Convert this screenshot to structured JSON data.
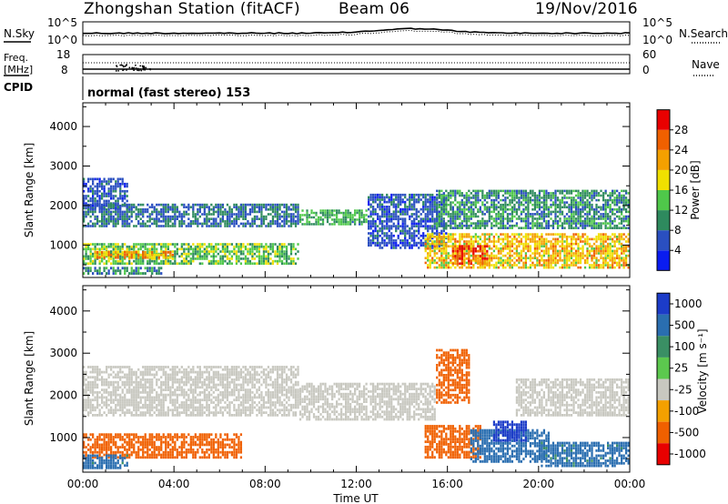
{
  "header": {
    "title": "Zhongshan Station (fitACF)",
    "beam": "Beam 06",
    "date": "19/Nov/2016"
  },
  "panels": {
    "nsky_label": "N.Sky",
    "nsearch_label": "N.Search",
    "sky_tick_top": "10^5",
    "sky_tick_bottom": "10^0",
    "freq_label_line1": "Freq.",
    "freq_label_line2": "[MHz]",
    "freq_tick_top": "18",
    "freq_tick_bottom": "8",
    "nave_tick_top": "60",
    "nave_tick_bottom": "0",
    "nave_label": "Nave",
    "cpid_label": "CPID",
    "cpid_text": "normal (fast stereo) 153"
  },
  "chart_data": [
    {
      "type": "heatmap",
      "variable": "power",
      "ylabel": "Slant Range [km]",
      "xlabel": "Time UT",
      "x_ticks": [
        "00:00",
        "04:00",
        "08:00",
        "12:00",
        "16:00",
        "20:00",
        "00:00"
      ],
      "y_ticks": [
        1000,
        2000,
        3000,
        4000
      ],
      "ylim": [
        180,
        4600
      ],
      "xlim_hours": [
        0,
        24
      ],
      "colorbar": {
        "label": "Power [dB]",
        "ticks": [
          4,
          8,
          12,
          16,
          20,
          24,
          28
        ],
        "range": [
          0,
          32
        ],
        "colors": [
          "#0a1cf0",
          "#2a4fc0",
          "#2e8a5e",
          "#4fc84a",
          "#f0e000",
          "#f4a000",
          "#f06000",
          "#e80000"
        ]
      },
      "echo_regions": [
        {
          "t0": 0.0,
          "t1": 2.0,
          "r0": 1900,
          "r1": 2700,
          "level": 6
        },
        {
          "t0": 0.0,
          "t1": 9.5,
          "r0": 1450,
          "r1": 2050,
          "level": 8
        },
        {
          "t0": 0.0,
          "t1": 9.5,
          "r0": 500,
          "r1": 1050,
          "level": 14
        },
        {
          "t0": 0.5,
          "t1": 4.0,
          "r0": 650,
          "r1": 850,
          "level": 22
        },
        {
          "t0": 0.0,
          "t1": 3.5,
          "r0": 250,
          "r1": 450,
          "level": 10
        },
        {
          "t0": 9.5,
          "t1": 12.5,
          "r0": 1500,
          "r1": 1900,
          "level": 12
        },
        {
          "t0": 12.5,
          "t1": 16.0,
          "r0": 900,
          "r1": 2300,
          "level": 6
        },
        {
          "t0": 15.0,
          "t1": 24.0,
          "r0": 400,
          "r1": 1300,
          "level": 20
        },
        {
          "t0": 16.2,
          "t1": 17.8,
          "r0": 500,
          "r1": 1000,
          "level": 28
        },
        {
          "t0": 15.5,
          "t1": 24.0,
          "r0": 1400,
          "r1": 2400,
          "level": 10
        }
      ]
    },
    {
      "type": "heatmap",
      "variable": "velocity",
      "ylabel": "Slant Range [km]",
      "xlabel": "Time UT",
      "x_ticks": [
        "00:00",
        "04:00",
        "08:00",
        "12:00",
        "16:00",
        "20:00",
        "00:00"
      ],
      "y_ticks": [
        1000,
        2000,
        3000,
        4000
      ],
      "ylim": [
        180,
        4600
      ],
      "xlim_hours": [
        0,
        24
      ],
      "colorbar": {
        "label": "Velocity [m s⁻¹]",
        "ticks": [
          "1000",
          "500",
          "100",
          "25",
          "-25",
          "-100",
          "-500",
          "-1000"
        ],
        "colors": [
          "#1c3cc8",
          "#2a6eb0",
          "#3a8f64",
          "#5cc84e",
          "#c8c8c0",
          "#f4a000",
          "#f06000",
          "#e80000"
        ]
      },
      "echo_regions": [
        {
          "t0": 0.0,
          "t1": 9.5,
          "r0": 1500,
          "r1": 2700,
          "level": 0
        },
        {
          "t0": 0.0,
          "t1": 7.0,
          "r0": 500,
          "r1": 1100,
          "level": -150
        },
        {
          "t0": 0.0,
          "t1": 2.0,
          "r0": 250,
          "r1": 600,
          "level": 120
        },
        {
          "t0": 9.5,
          "t1": 15.5,
          "r0": 1400,
          "r1": 2300,
          "level": 0
        },
        {
          "t0": 15.5,
          "t1": 17.0,
          "r0": 1800,
          "r1": 3100,
          "level": -250
        },
        {
          "t0": 15.0,
          "t1": 17.5,
          "r0": 500,
          "r1": 1300,
          "level": -150
        },
        {
          "t0": 17.0,
          "t1": 20.5,
          "r0": 400,
          "r1": 1200,
          "level": 150
        },
        {
          "t0": 18.0,
          "t1": 19.5,
          "r0": 900,
          "r1": 1400,
          "level": 700
        },
        {
          "t0": 19.0,
          "t1": 24.0,
          "r0": 1500,
          "r1": 2400,
          "level": 0
        },
        {
          "t0": 20.0,
          "t1": 24.0,
          "r0": 300,
          "r1": 900,
          "level": 120
        }
      ]
    }
  ]
}
